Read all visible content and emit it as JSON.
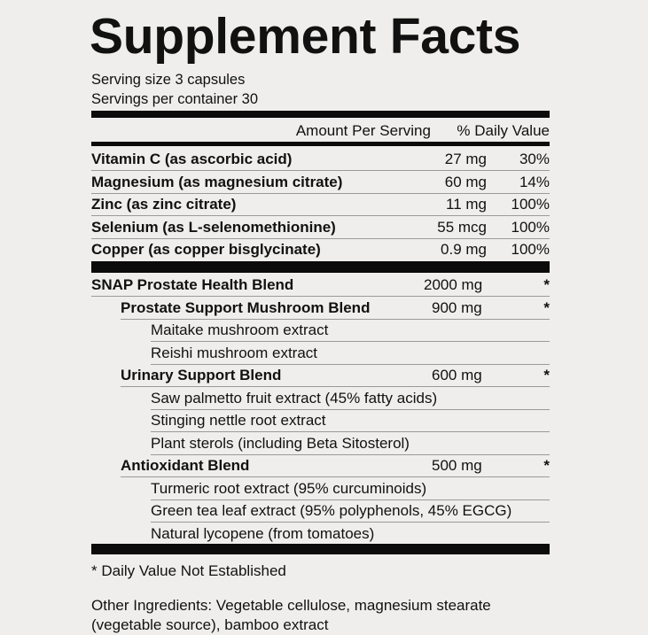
{
  "title": "Supplement Facts",
  "serving_size": "Serving size 3 capsules",
  "servings_per_container": "Servings per container 30",
  "header": {
    "amount": "Amount Per Serving",
    "dv": "% Daily Value"
  },
  "nutrients": [
    {
      "name": "Vitamin C (as ascorbic acid)",
      "amount": "27 mg",
      "dv": "30%"
    },
    {
      "name": "Magnesium (as magnesium citrate)",
      "amount": "60 mg",
      "dv": "14%"
    },
    {
      "name": "Zinc (as zinc citrate)",
      "amount": "11 mg",
      "dv": "100%"
    },
    {
      "name": "Selenium (as L-selenomethionine)",
      "amount": "55 mcg",
      "dv": "100%"
    },
    {
      "name": "Copper (as copper bisglycinate)",
      "amount": "0.9 mg",
      "dv": "100%"
    }
  ],
  "blends": [
    {
      "name": "SNAP Prostate Health Blend",
      "amount": "2000 mg",
      "dv": "*"
    },
    {
      "name": "Prostate Support Mushroom Blend",
      "amount": "900 mg",
      "dv": "*"
    },
    {
      "name": "Maitake mushroom extract"
    },
    {
      "name": "Reishi mushroom extract"
    },
    {
      "name": "Urinary Support Blend",
      "amount": "600 mg",
      "dv": "*"
    },
    {
      "name": "Saw palmetto fruit extract (45% fatty acids)"
    },
    {
      "name": "Stinging nettle root extract"
    },
    {
      "name": "Plant sterols (including Beta Sitosterol)"
    },
    {
      "name": "Antioxidant Blend",
      "amount": "500 mg",
      "dv": "*"
    },
    {
      "name": "Turmeric root extract (95% curcuminoids)"
    },
    {
      "name": "Green tea leaf extract (95% polyphenols, 45% EGCG)"
    },
    {
      "name": "Natural lycopene (from tomatoes)"
    }
  ],
  "footnote": "* Daily Value Not Established",
  "other_ingredients": [
    "Other Ingredients: Vegetable cellulose, magnesium stearate",
    "(vegetable source), bamboo extract"
  ]
}
